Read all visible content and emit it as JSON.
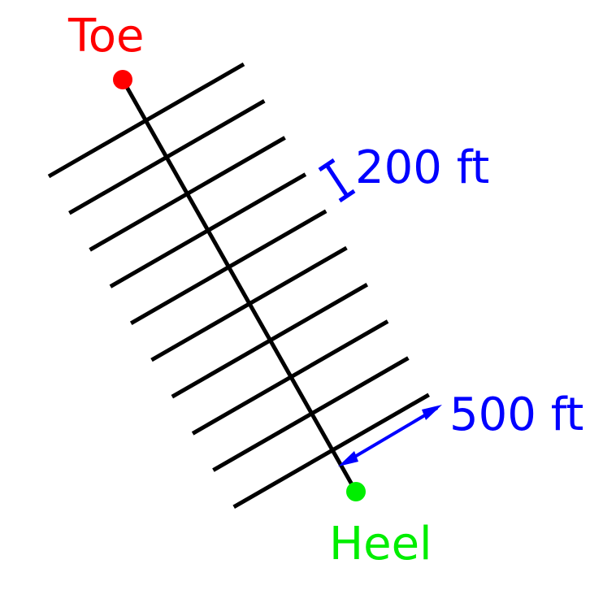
{
  "labels": {
    "toe": "Toe",
    "heel": "Heel",
    "spacing": "200 ft",
    "fracture_half_length": "500 ft"
  },
  "colors": {
    "toe": "#ff0000",
    "heel": "#00ee00",
    "annotation": "#0000ff",
    "wellbore": "#000000",
    "fractures": "#000000"
  },
  "fracture_count": 10
}
